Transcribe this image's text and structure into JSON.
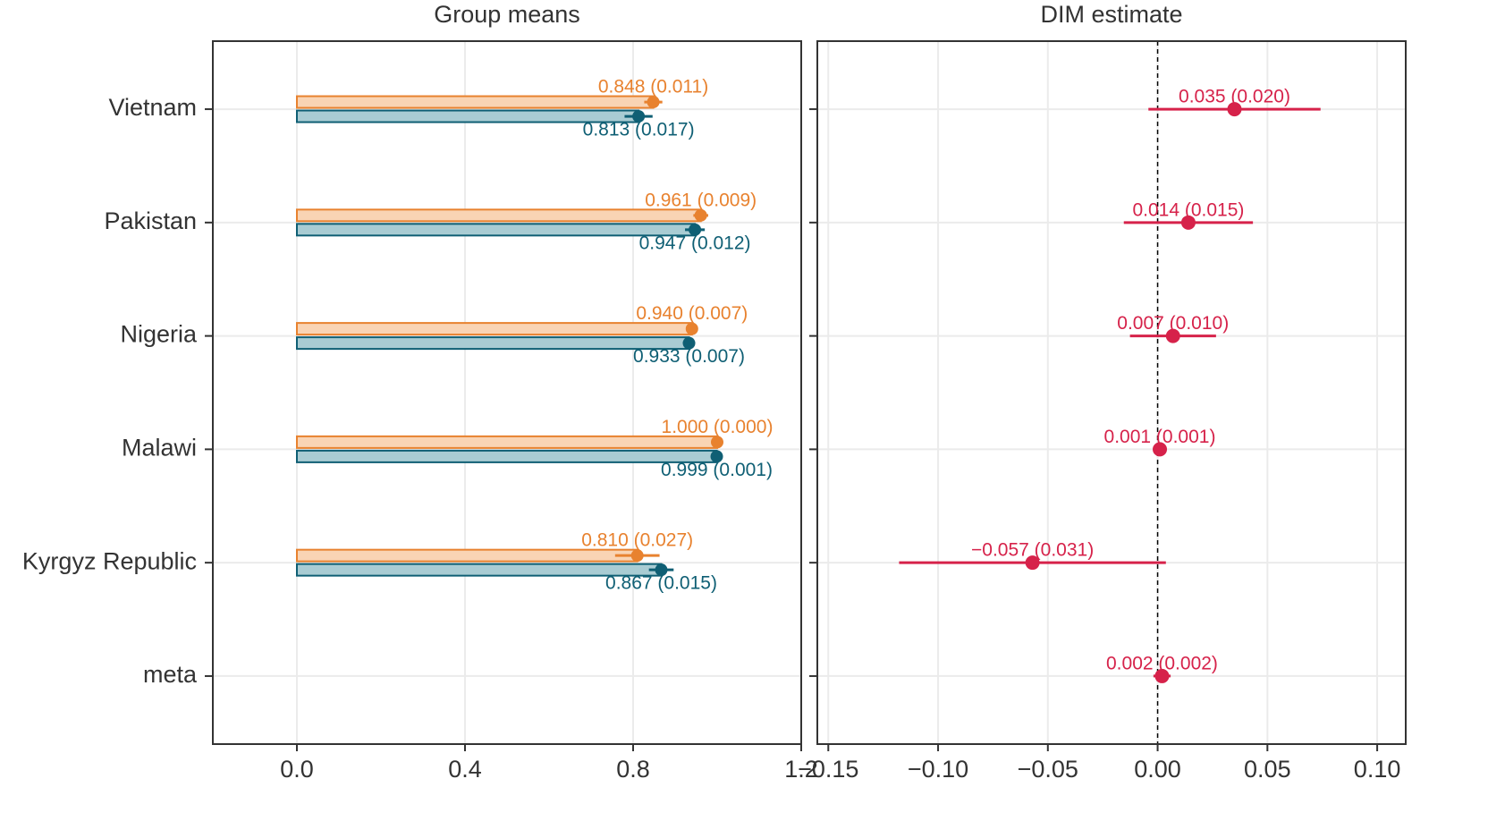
{
  "chart_data": [
    {
      "type": "bar",
      "title": "Group means",
      "categories": [
        "Vietnam",
        "Pakistan",
        "Nigeria",
        "Malawi",
        "Kyrgyz Republic",
        "meta"
      ],
      "series": [
        {
          "color": "#e8822f",
          "fill": "#f9d4b4",
          "values": [
            0.848,
            0.961,
            0.94,
            1.0,
            0.81,
            null
          ],
          "errors": [
            0.011,
            0.009,
            0.007,
            0.0,
            0.027,
            null
          ],
          "value_labels": [
            "0.848 (0.011)",
            "0.961 (0.009)",
            "0.940 (0.007)",
            "1.000 (0.000)",
            "0.810 (0.027)",
            null
          ]
        },
        {
          "color": "#0f5f74",
          "fill": "#a9ccd3",
          "values": [
            0.813,
            0.947,
            0.933,
            0.999,
            0.867,
            null
          ],
          "errors": [
            0.017,
            0.012,
            0.007,
            0.001,
            0.015,
            null
          ],
          "value_labels": [
            "0.813 (0.017)",
            "0.947 (0.012)",
            "0.933 (0.007)",
            "0.999 (0.001)",
            "0.867 (0.015)",
            null
          ]
        }
      ],
      "xlim": [
        -0.2,
        1.2
      ],
      "xticks": [
        {
          "value": 0,
          "label": "0.0"
        },
        0.4,
        0.8,
        1.2
      ],
      "grid": true
    },
    {
      "type": "dot",
      "title": "DIM estimate",
      "series": [
        {
          "color": "#d6224a",
          "values": [
            0.035,
            0.014,
            0.007,
            0.001,
            -0.057,
            0.002
          ],
          "errors": [
            0.02,
            0.015,
            0.01,
            0.001,
            0.031,
            0.002
          ],
          "value_labels": [
            "0.035 (0.020)",
            "0.014 (0.015)",
            "0.007 (0.010)",
            "0.001 (0.001)",
            "−0.057 (0.031)",
            "0.002 (0.002)"
          ]
        }
      ],
      "xlim": [
        -0.155,
        0.113
      ],
      "xticks": [
        {
          "value": -0.15,
          "label": "−0.15"
        },
        {
          "value": -0.1,
          "label": "−0.10"
        },
        {
          "value": -0.05,
          "label": "−0.05"
        },
        {
          "value": 0,
          "label": "0.00"
        },
        0.05,
        {
          "value": 0.1,
          "label": "0.10"
        }
      ],
      "vline": 0,
      "grid": true
    }
  ]
}
